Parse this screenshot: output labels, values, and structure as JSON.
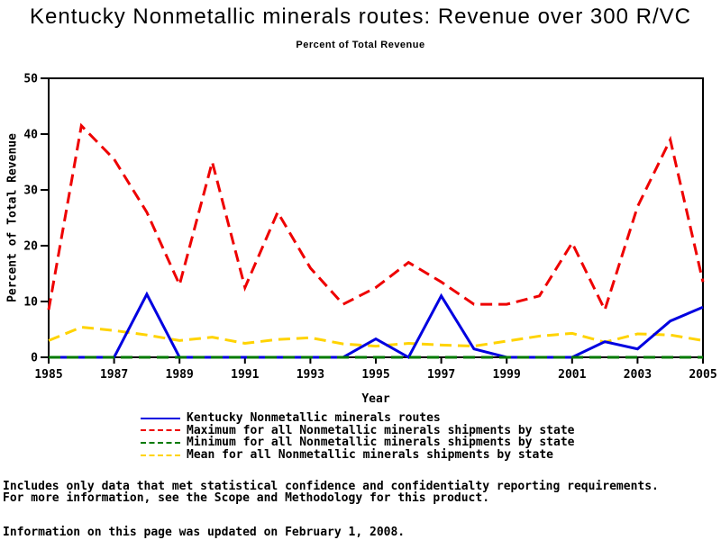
{
  "title": "Kentucky Nonmetallic minerals routes: Revenue over 300 R/VC",
  "subtitle": "Percent of Total Revenue",
  "chart_data": {
    "type": "line",
    "title": "Kentucky Nonmetallic minerals routes: Revenue over 300 R/VC",
    "subtitle": "Percent of Total Revenue",
    "xlabel": "Year",
    "ylabel": "Percent of Total Revenue",
    "xlim": [
      1985,
      2005
    ],
    "ylim": [
      0,
      50
    ],
    "xticks": [
      1985,
      1987,
      1989,
      1991,
      1993,
      1995,
      1997,
      1999,
      2001,
      2003,
      2005
    ],
    "yticks": [
      0,
      10,
      20,
      30,
      40,
      50
    ],
    "grid": false,
    "frame": "full-box",
    "legend_position": "bottom",
    "x": [
      1985,
      1986,
      1987,
      1988,
      1989,
      1990,
      1991,
      1992,
      1993,
      1994,
      1995,
      1996,
      1997,
      1998,
      1999,
      2000,
      2001,
      2002,
      2003,
      2004,
      2005
    ],
    "series": [
      {
        "name": "Kentucky Nonmetallic minerals routes",
        "color": "#0000e0",
        "line_style": "solid",
        "values": [
          0,
          0,
          0,
          11.3,
          0,
          0,
          0,
          0,
          0,
          0,
          3.3,
          0,
          11,
          1.5,
          0,
          0,
          0,
          2.8,
          1.5,
          6.5,
          9
        ]
      },
      {
        "name": "Maximum for all Nonmetallic minerals shipments by state",
        "color": "#ee0000",
        "line_style": "dashed",
        "values": [
          8.5,
          41.5,
          35.5,
          26,
          13,
          35,
          12.5,
          26,
          16,
          9.5,
          12.5,
          17,
          13.5,
          9.5,
          9.5,
          11,
          20.5,
          8.5,
          27,
          39,
          13.5
        ]
      },
      {
        "name": "Minimum for all Nonmetallic minerals shipments by state",
        "color": "#007a00",
        "line_style": "dashed",
        "values": [
          0,
          0,
          0,
          0,
          0,
          0,
          0,
          0,
          0,
          0,
          0,
          0,
          0,
          0,
          0,
          0,
          0,
          0,
          0,
          0,
          0
        ]
      },
      {
        "name": "Mean for all Nonmetallic minerals shipments by state",
        "color": "#ffd300",
        "line_style": "dashed",
        "values": [
          3,
          5.4,
          4.8,
          4,
          3,
          3.6,
          2.5,
          3.2,
          3.5,
          2.4,
          2,
          2.5,
          2.2,
          2,
          2.9,
          3.8,
          4.3,
          2.7,
          4.2,
          4,
          3
        ]
      }
    ],
    "axis_color": "#000000"
  },
  "footnotes": {
    "line1": "Includes only data that met statistical confidence and confidentialty reporting requirements.",
    "line2": "For more information, see the Scope and Methodology for this product.",
    "line3": "Information on this page was updated on February 1, 2008."
  }
}
